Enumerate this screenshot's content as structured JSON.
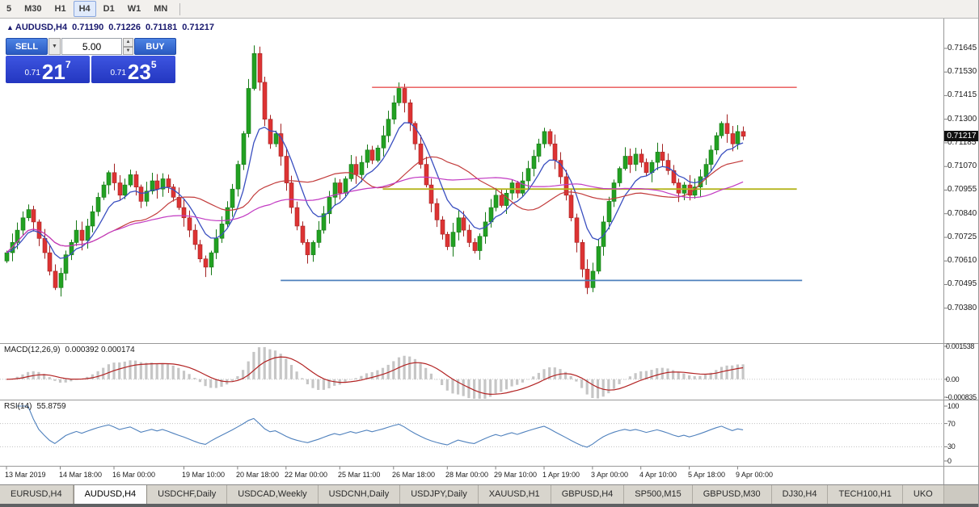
{
  "colors": {
    "accent_button_blue": "#2f5fd0",
    "price_box_blue": "#2b3ccc",
    "current_price_badge_bg": "#111111"
  },
  "toolbar": {
    "timeframes": [
      {
        "label": "5",
        "active": false
      },
      {
        "label": "M30",
        "active": false
      },
      {
        "label": "H1",
        "active": false
      },
      {
        "label": "H4",
        "active": true
      },
      {
        "label": "D1",
        "active": false
      },
      {
        "label": "W1",
        "active": false
      },
      {
        "label": "MN",
        "active": false
      }
    ]
  },
  "chart": {
    "symbol_line": {
      "symbol": "AUDUSD,H4",
      "open": "0.71190",
      "high": "0.71226",
      "low": "0.71181",
      "close": "0.71217"
    },
    "trade_panel": {
      "sell_label": "SELL",
      "buy_label": "BUY",
      "volume": "5.00",
      "sell_price": {
        "prefix": "0.71",
        "big": "21",
        "sup": "7"
      },
      "buy_price": {
        "prefix": "0.71",
        "big": "23",
        "sup": "5"
      }
    },
    "current_price": "0.71217"
  },
  "chart_data": {
    "type": "candlestick",
    "title": "AUDUSD,H4",
    "price_range": {
      "top": 0.7179,
      "bottom": 0.7021
    },
    "y_axis_ticks": [
      "0.71645",
      "0.71530",
      "0.71415",
      "0.71300",
      "0.71185",
      "0.71070",
      "0.70955",
      "0.70840",
      "0.70725",
      "0.70610",
      "0.70495",
      "0.70380"
    ],
    "x_axis_labels": [
      {
        "label": "13 Mar 2019",
        "index": 0
      },
      {
        "label": "14 Mar 18:00",
        "index": 10
      },
      {
        "label": "16 Mar 00:00",
        "index": 20
      },
      {
        "label": "19 Mar 10:00",
        "index": 33
      },
      {
        "label": "20 Mar 18:00",
        "index": 43
      },
      {
        "label": "22 Mar 00:00",
        "index": 52
      },
      {
        "label": "25 Mar 11:00",
        "index": 62
      },
      {
        "label": "26 Mar 18:00",
        "index": 72
      },
      {
        "label": "28 Mar 00:00",
        "index": 82
      },
      {
        "label": "29 Mar 10:00",
        "index": 91
      },
      {
        "label": "1 Apr 19:00",
        "index": 100
      },
      {
        "label": "3 Apr 00:00",
        "index": 109
      },
      {
        "label": "4 Apr 10:00",
        "index": 118
      },
      {
        "label": "5 Apr 18:00",
        "index": 127
      },
      {
        "label": "9 Apr 00:00",
        "index": 136
      }
    ],
    "closes": [
      0.7065,
      0.707,
      0.7076,
      0.7082,
      0.7086,
      0.708,
      0.7072,
      0.7065,
      0.7056,
      0.7048,
      0.7055,
      0.7064,
      0.707,
      0.7076,
      0.7071,
      0.7078,
      0.7085,
      0.7092,
      0.7098,
      0.7104,
      0.7099,
      0.7093,
      0.7098,
      0.7103,
      0.7097,
      0.709,
      0.7095,
      0.71,
      0.7096,
      0.7101,
      0.7097,
      0.7092,
      0.7087,
      0.7082,
      0.7076,
      0.7069,
      0.7062,
      0.7058,
      0.7065,
      0.7072,
      0.7079,
      0.7087,
      0.7096,
      0.7108,
      0.7123,
      0.7145,
      0.7162,
      0.7148,
      0.713,
      0.7118,
      0.7123,
      0.7112,
      0.7099,
      0.7087,
      0.7078,
      0.707,
      0.7064,
      0.707,
      0.7076,
      0.7084,
      0.7092,
      0.7099,
      0.7094,
      0.7101,
      0.7108,
      0.7103,
      0.7109,
      0.7115,
      0.711,
      0.7116,
      0.7122,
      0.713,
      0.7138,
      0.7145,
      0.7138,
      0.7128,
      0.7118,
      0.7108,
      0.7098,
      0.7089,
      0.7081,
      0.7074,
      0.7068,
      0.7075,
      0.7082,
      0.7076,
      0.707,
      0.7066,
      0.7073,
      0.708,
      0.7087,
      0.7093,
      0.7088,
      0.7094,
      0.7099,
      0.7094,
      0.71,
      0.7106,
      0.7112,
      0.7118,
      0.7124,
      0.7118,
      0.711,
      0.7102,
      0.7093,
      0.7082,
      0.707,
      0.7057,
      0.7048,
      0.7056,
      0.7068,
      0.708,
      0.709,
      0.7099,
      0.7106,
      0.7112,
      0.7108,
      0.7113,
      0.7109,
      0.7104,
      0.7109,
      0.7114,
      0.711,
      0.7105,
      0.7099,
      0.7094,
      0.7098,
      0.7093,
      0.7097,
      0.7102,
      0.7108,
      0.7115,
      0.7122,
      0.7128,
      0.7123,
      0.7118,
      0.7124,
      0.71217
    ],
    "candle_colors": {
      "up": "#22a122",
      "up_border": "#157815",
      "down": "#dd3333",
      "down_border": "#a32222"
    },
    "hlines": [
      {
        "price": 0.71455,
        "color": "#e85050",
        "from_index": 68,
        "to_index": 147,
        "width": 1.4
      },
      {
        "price": 0.7096,
        "color": "#b5b520",
        "from_index": 70,
        "to_index": 147,
        "width": 1.8
      },
      {
        "price": 0.70515,
        "color": "#4f81bd",
        "from_index": 51,
        "to_index": 148,
        "width": 1.8
      }
    ],
    "moving_averages": [
      {
        "type": "ema",
        "period": 8,
        "color": "#3a4fc0",
        "width": 1.3
      },
      {
        "type": "sma",
        "period": 21,
        "color": "#c23b3b",
        "width": 1.2
      },
      {
        "type": "sma",
        "period": 50,
        "color": "#c239c2",
        "width": 1.2
      }
    ],
    "indicators": {
      "macd": {
        "label": "MACD(12,26,9)",
        "values": "0.000392 0.000174",
        "fast": 12,
        "slow": 26,
        "signal": 9,
        "hist_color": "#c6c6c6",
        "signal_color": "#b22222",
        "axis": [
          {
            "text": "0.001538",
            "v": 0.001538
          },
          {
            "text": "0.00",
            "v": 0
          },
          {
            "text": "-0.000835",
            "v": -0.000835
          }
        ]
      },
      "rsi": {
        "label": "RSI(14)",
        "value": "55.8759",
        "period": 14,
        "color": "#4f81bd",
        "levels": [
          70,
          30
        ],
        "axis": [
          {
            "text": "100",
            "v": 100
          },
          {
            "text": "70",
            "v": 70
          },
          {
            "text": "30",
            "v": 30
          },
          {
            "text": "0",
            "v": 0
          }
        ]
      }
    }
  },
  "tabs": {
    "items": [
      {
        "label": "EURUSD,H4",
        "active": false
      },
      {
        "label": "AUDUSD,H4",
        "active": true
      },
      {
        "label": "USDCHF,Daily",
        "active": false
      },
      {
        "label": "USDCAD,Weekly",
        "active": false
      },
      {
        "label": "USDCNH,Daily",
        "active": false
      },
      {
        "label": "USDJPY,Daily",
        "active": false
      },
      {
        "label": "XAUUSD,H1",
        "active": false
      },
      {
        "label": "GBPUSD,H4",
        "active": false
      },
      {
        "label": "SP500,M15",
        "active": false
      },
      {
        "label": "GBPUSD,M30",
        "active": false
      },
      {
        "label": "DJ30,H4",
        "active": false
      },
      {
        "label": "TECH100,H1",
        "active": false
      },
      {
        "label": "UKO",
        "active": false
      }
    ]
  }
}
